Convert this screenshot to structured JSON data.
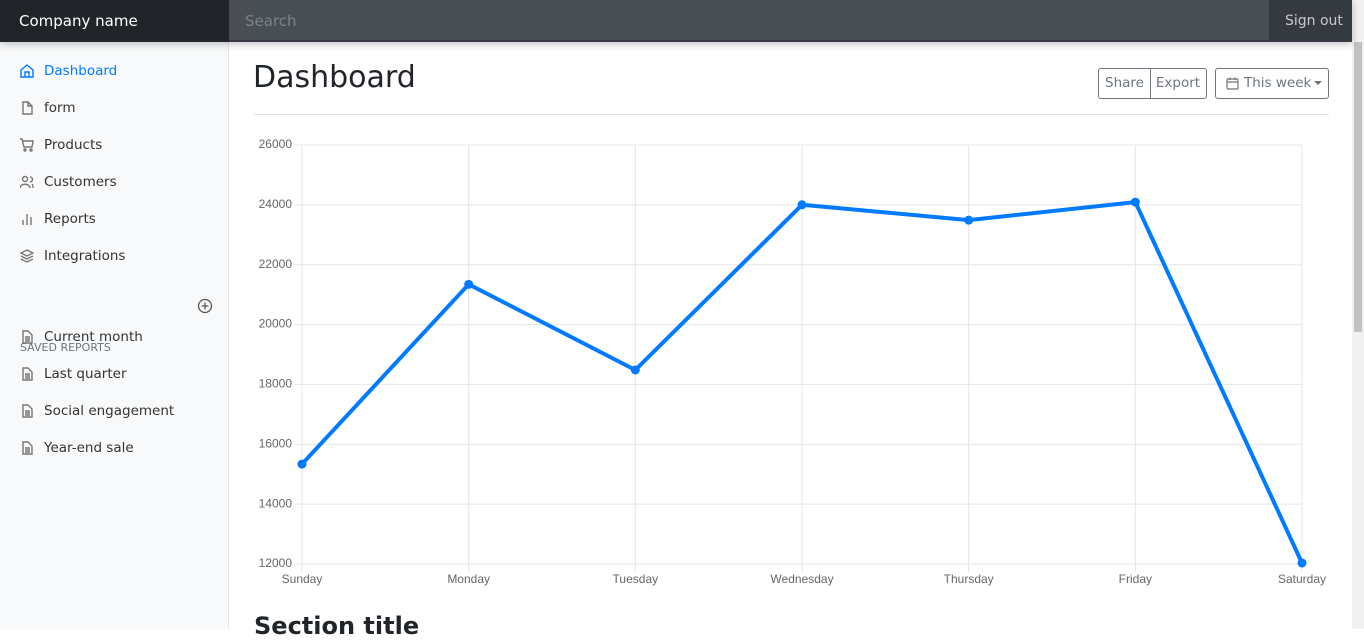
{
  "navbar": {
    "brand": "Company name",
    "search_placeholder": "Search",
    "sign_out": "Sign out"
  },
  "sidebar": {
    "items": [
      "Dashboard",
      "form",
      "Products",
      "Customers",
      "Reports",
      "Integrations"
    ],
    "saved_reports_heading": "SAVED REPORTS",
    "saved_reports": [
      "Current month",
      "Last quarter",
      "Social engagement",
      "Year-end sale"
    ]
  },
  "header": {
    "title": "Dashboard",
    "buttons": [
      "Share",
      "Export"
    ],
    "dropdown": "This week"
  },
  "chart_data": {
    "type": "line",
    "categories": [
      "Sunday",
      "Monday",
      "Tuesday",
      "Wednesday",
      "Thursday",
      "Friday",
      "Saturday"
    ],
    "series": [
      {
        "color": "#007bff",
        "values": [
          15339,
          21345,
          18483,
          24003,
          23489,
          24092,
          12034
        ]
      }
    ],
    "ylim": [
      12000,
      26000
    ],
    "yticks": [
      12000,
      14000,
      16000,
      18000,
      20000,
      22000,
      24000,
      26000
    ],
    "grid": true
  },
  "section_title": "Section title"
}
